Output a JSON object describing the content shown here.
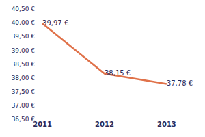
{
  "chart_data": {
    "type": "line",
    "categories": [
      "2011",
      "2012",
      "2013"
    ],
    "values": [
      39.97,
      38.15,
      37.78
    ],
    "value_labels": [
      "39,97 €",
      "38,15 €",
      "37,78 €"
    ],
    "data_labels": true,
    "color": "#e0724a",
    "ylim": [
      36.5,
      40.5
    ],
    "yticks": [
      {
        "value": 36.5,
        "label": "36,50 €"
      },
      {
        "value": 37.0,
        "label": "37,00 €"
      },
      {
        "value": 37.5,
        "label": "37,50 €"
      },
      {
        "value": 38.0,
        "label": "38,00 €"
      },
      {
        "value": 38.5,
        "label": "38,50 €"
      },
      {
        "value": 39.0,
        "label": "39,00 €"
      },
      {
        "value": 39.5,
        "label": "39,50 €"
      },
      {
        "value": 40.0,
        "label": "40,00 €"
      },
      {
        "value": 40.5,
        "label": "40,50 €"
      }
    ],
    "grid": false
  }
}
